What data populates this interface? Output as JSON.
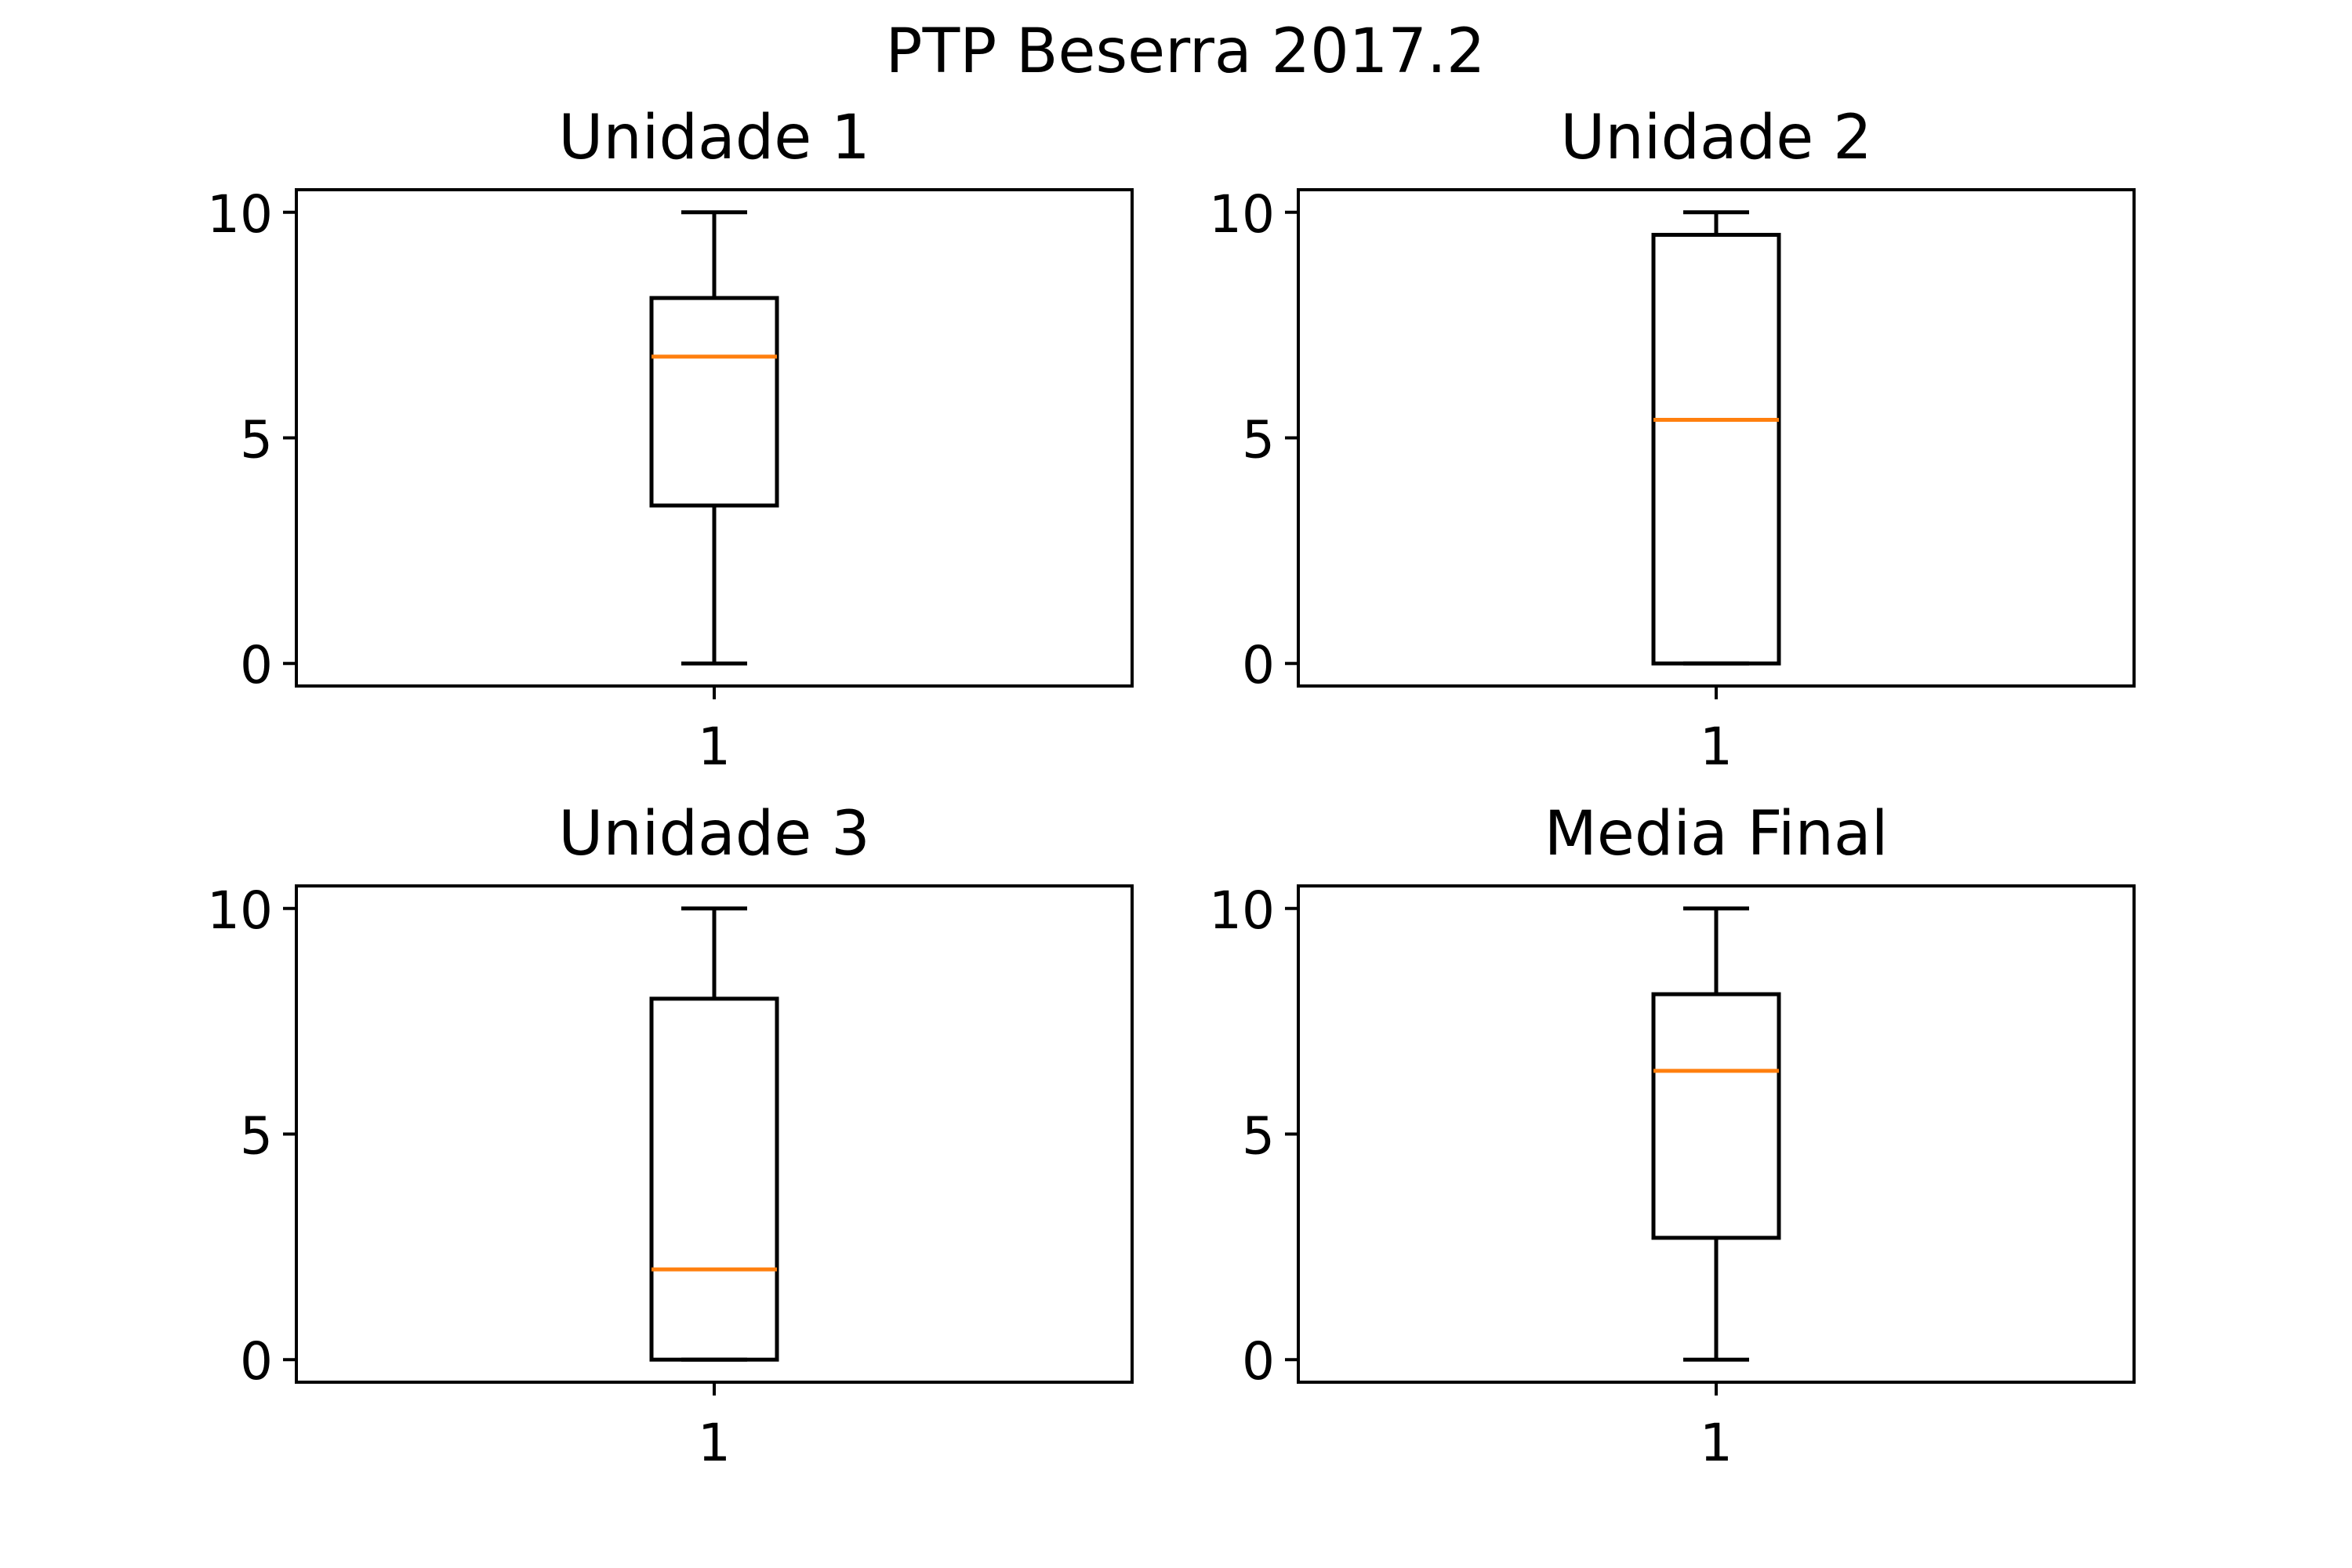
{
  "figure": {
    "title": "PTP Beserra 2017.2"
  },
  "chart_data": [
    {
      "type": "box",
      "title": "Unidade 1",
      "xlabel": "",
      "ylabel": "",
      "categories": [
        "1"
      ],
      "ylim": [
        -0.5,
        10.5
      ],
      "yticks": [
        0,
        5,
        10
      ],
      "boxes": [
        {
          "whisker_low": 0.0,
          "q1": 3.5,
          "median": 6.8,
          "q3": 8.1,
          "whisker_high": 10.0
        }
      ]
    },
    {
      "type": "box",
      "title": "Unidade 2",
      "xlabel": "",
      "ylabel": "",
      "categories": [
        "1"
      ],
      "ylim": [
        -0.5,
        10.5
      ],
      "yticks": [
        0,
        5,
        10
      ],
      "boxes": [
        {
          "whisker_low": 0.0,
          "q1": 0.0,
          "median": 5.4,
          "q3": 9.5,
          "whisker_high": 10.0
        }
      ]
    },
    {
      "type": "box",
      "title": "Unidade 3",
      "xlabel": "",
      "ylabel": "",
      "categories": [
        "1"
      ],
      "ylim": [
        -0.5,
        10.5
      ],
      "yticks": [
        0,
        5,
        10
      ],
      "boxes": [
        {
          "whisker_low": 0.0,
          "q1": 0.0,
          "median": 2.0,
          "q3": 8.0,
          "whisker_high": 10.0
        }
      ]
    },
    {
      "type": "box",
      "title": "Media Final",
      "xlabel": "",
      "ylabel": "",
      "categories": [
        "1"
      ],
      "ylim": [
        -0.5,
        10.5
      ],
      "yticks": [
        0,
        5,
        10
      ],
      "boxes": [
        {
          "whisker_low": 0.0,
          "q1": 2.7,
          "median": 6.4,
          "q3": 8.1,
          "whisker_high": 10.0
        }
      ]
    }
  ],
  "style": {
    "median_color": "#ff7f0e",
    "line_color": "#000000",
    "background": "#ffffff",
    "grid": false,
    "legend": "none"
  }
}
